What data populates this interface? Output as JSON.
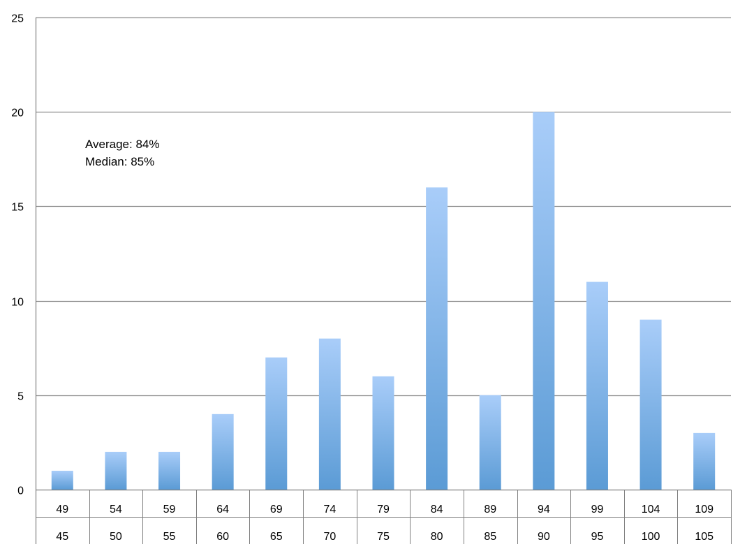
{
  "chart_data": {
    "type": "bar",
    "title": "",
    "xlabel": "",
    "ylabel": "",
    "ylim": [
      0,
      25
    ],
    "yticks": [
      0,
      5,
      10,
      15,
      20,
      25
    ],
    "grid": true,
    "legend": "none",
    "bar_color": "#5b9bd5",
    "bar_color_top": "#a9cdf9",
    "categories": [
      {
        "low": "45",
        "high": "49"
      },
      {
        "low": "50",
        "high": "54"
      },
      {
        "low": "55",
        "high": "59"
      },
      {
        "low": "60",
        "high": "64"
      },
      {
        "low": "65",
        "high": "69"
      },
      {
        "low": "70",
        "high": "74"
      },
      {
        "low": "75",
        "high": "79"
      },
      {
        "low": "80",
        "high": "84"
      },
      {
        "low": "85",
        "high": "89"
      },
      {
        "low": "90",
        "high": "94"
      },
      {
        "low": "95",
        "high": "99"
      },
      {
        "low": "100",
        "high": "104"
      },
      {
        "low": "105",
        "high": "109"
      }
    ],
    "values": [
      1,
      2,
      2,
      4,
      7,
      8,
      6,
      16,
      5,
      20,
      11,
      9,
      3
    ],
    "annotations": [
      "Average: 84%",
      "Median: 85%"
    ]
  }
}
